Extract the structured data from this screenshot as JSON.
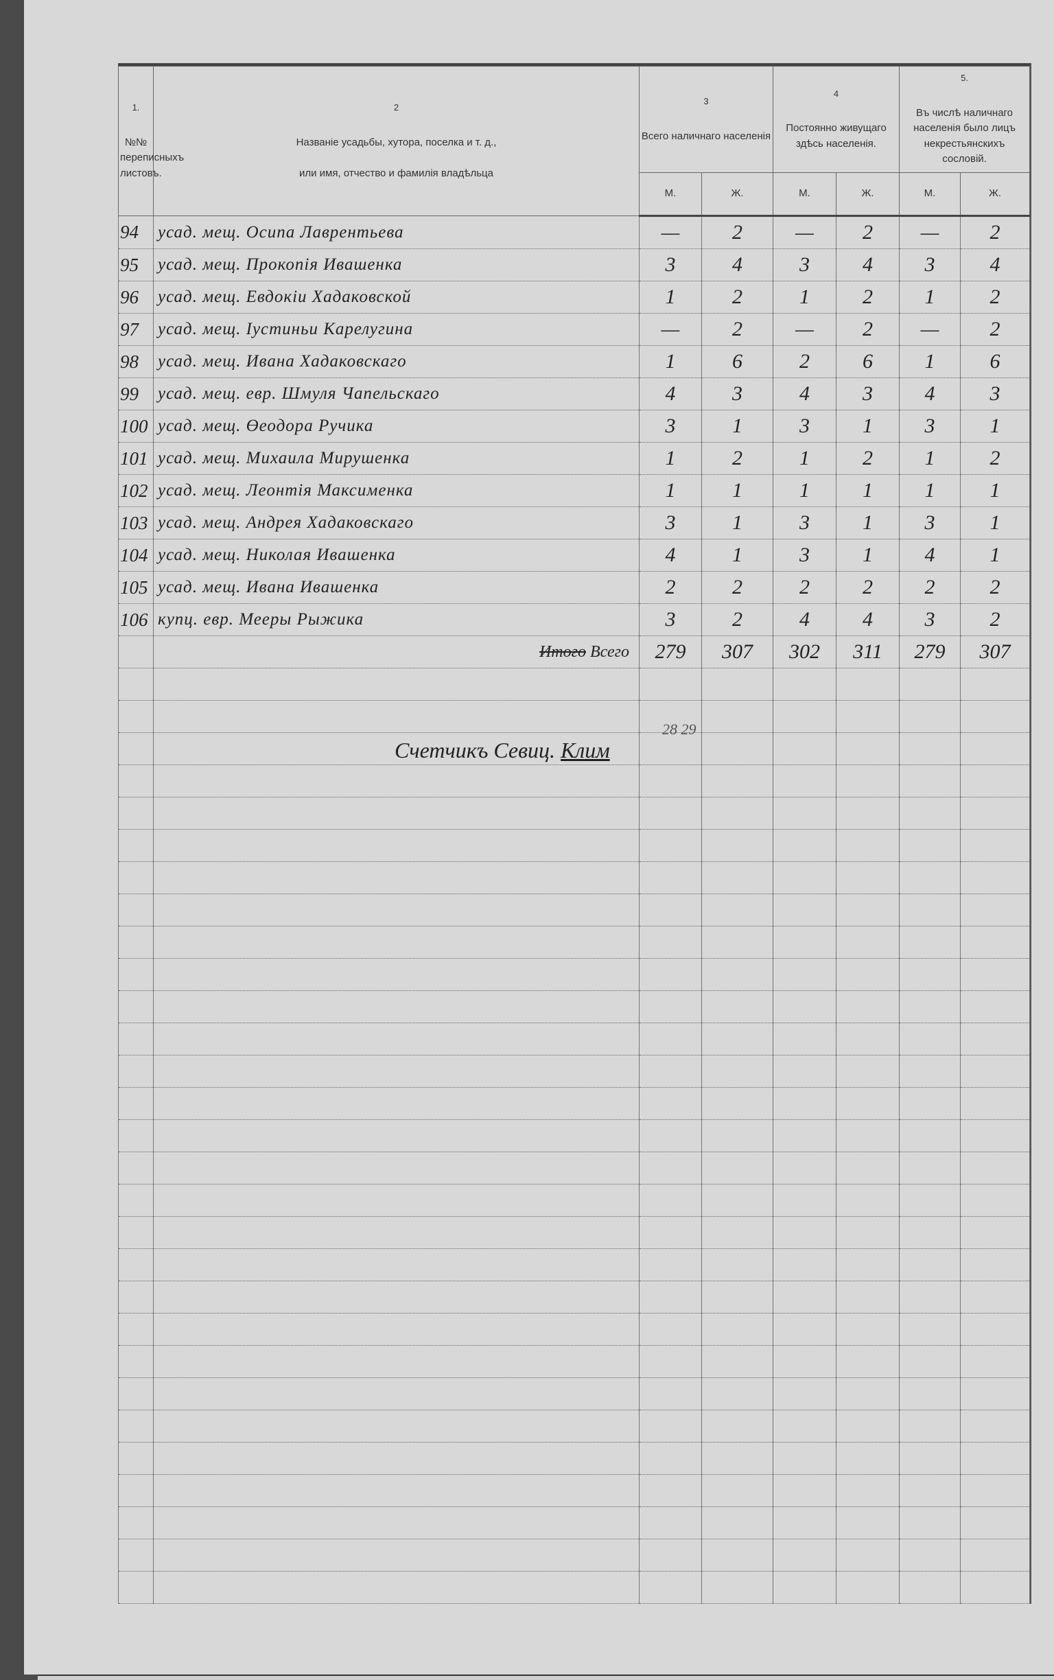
{
  "header": {
    "col1_number": "1.",
    "col1_label": "№№ переписныхъ листовъ.",
    "col2_number": "2",
    "col2_label_line1": "Названіе усадьбы, хутора, поселка и т. д.,",
    "col2_label_line2": "или имя, отчество и фамилія владѣльца",
    "col3_number": "3",
    "col3_label": "Всего наличнаго населенія",
    "col4_number": "4",
    "col4_label": "Постоянно живущаго здѣсь населенія.",
    "col5_number": "5.",
    "col5_label": "Въ числѣ наличнаго населенія было лицъ некрестьянскихъ сословій.",
    "m": "М.",
    "zh": "Ж."
  },
  "rows": [
    {
      "no": "94",
      "name": "усад. мещ. Осипа Лаврентьева",
      "c3m": "—",
      "c3f": "2",
      "c4m": "—",
      "c4f": "2",
      "c5m": "—",
      "c5f": "2"
    },
    {
      "no": "95",
      "name": "усад. мещ. Прокопія Ивашенка",
      "c3m": "3",
      "c3f": "4",
      "c4m": "3",
      "c4f": "4",
      "c5m": "3",
      "c5f": "4"
    },
    {
      "no": "96",
      "name": "усад. мещ. Евдокіи Хадаковской",
      "c3m": "1",
      "c3f": "2",
      "c4m": "1",
      "c4f": "2",
      "c5m": "1",
      "c5f": "2"
    },
    {
      "no": "97",
      "name": "усад. мещ. Іустиньи Карелугина",
      "c3m": "—",
      "c3f": "2",
      "c4m": "—",
      "c4f": "2",
      "c5m": "—",
      "c5f": "2"
    },
    {
      "no": "98",
      "name": "усад. мещ. Ивана Хадаковскаго",
      "c3m": "1",
      "c3f": "6",
      "c4m": "2",
      "c4f": "6",
      "c5m": "1",
      "c5f": "6"
    },
    {
      "no": "99",
      "name": "усад. мещ. евр. Шмуля Чапельскаго",
      "c3m": "4",
      "c3f": "3",
      "c4m": "4",
      "c4f": "3",
      "c5m": "4",
      "c5f": "3"
    },
    {
      "no": "100",
      "name": "усад. мещ. Өеодора Ручика",
      "c3m": "3",
      "c3f": "1",
      "c4m": "3",
      "c4f": "1",
      "c5m": "3",
      "c5f": "1"
    },
    {
      "no": "101",
      "name": "усад. мещ. Михаила Мирушенка",
      "c3m": "1",
      "c3f": "2",
      "c4m": "1",
      "c4f": "2",
      "c5m": "1",
      "c5f": "2"
    },
    {
      "no": "102",
      "name": "усад. мещ. Леонтія Максименка",
      "c3m": "1",
      "c3f": "1",
      "c4m": "1",
      "c4f": "1",
      "c5m": "1",
      "c5f": "1"
    },
    {
      "no": "103",
      "name": "усад. мещ. Андрея Хадаковскаго",
      "c3m": "3",
      "c3f": "1",
      "c4m": "3",
      "c4f": "1",
      "c5m": "3",
      "c5f": "1"
    },
    {
      "no": "104",
      "name": "усад. мещ. Николая Ивашенка",
      "c3m": "4",
      "c3f": "1",
      "c4m": "3",
      "c4f": "1",
      "c5m": "4",
      "c5f": "1"
    },
    {
      "no": "105",
      "name": "усад. мещ. Ивана Ивашенка",
      "c3m": "2",
      "c3f": "2",
      "c4m": "2",
      "c4f": "2",
      "c5m": "2",
      "c5f": "2"
    },
    {
      "no": "106",
      "name": "купц. евр. Мееры Рыжика",
      "c3m": "3",
      "c3f": "2",
      "c4m": "4",
      "c4f": "4",
      "c5m": "3",
      "c5f": "2"
    }
  ],
  "totals": {
    "label_struck": "Итого",
    "label": "Всего",
    "c3m": "279",
    "c3f": "307",
    "c4m": "302",
    "c4f": "311",
    "c5m": "279",
    "c5f": "307"
  },
  "corrections": "28 29",
  "signature": {
    "text": "Счетчикъ Севиц.",
    "mark": "Клим"
  },
  "colors": {
    "paper": "#d8d8d8",
    "ink": "#222222",
    "background": "#4a4a4a"
  }
}
